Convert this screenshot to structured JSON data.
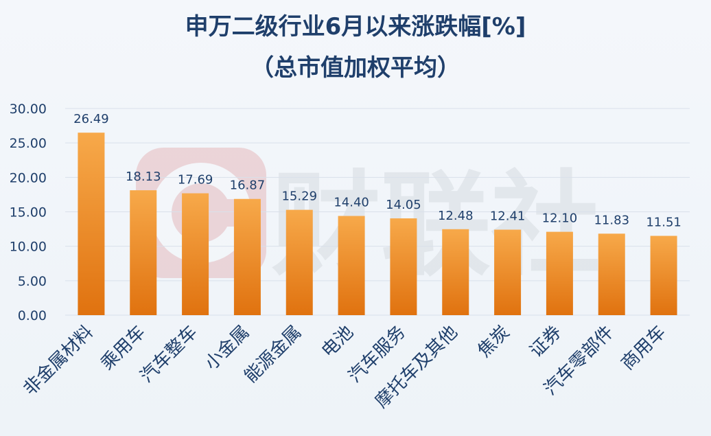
{
  "chart_data": {
    "type": "bar",
    "title": "申万二级行业6月以来涨跌幅[%]",
    "subtitle": "（总市值加权平均）",
    "watermark": "财联社",
    "categories": [
      "非金属材料",
      "乘用车",
      "汽车整车",
      "小金属",
      "能源金属",
      "电池",
      "汽车服务",
      "摩托车及其他",
      "焦炭",
      "证券",
      "汽车零部件",
      "商用车"
    ],
    "values": [
      26.49,
      18.13,
      17.69,
      16.87,
      15.29,
      14.4,
      14.05,
      12.48,
      12.41,
      12.1,
      11.83,
      11.51
    ],
    "value_labels": [
      "26.49",
      "18.13",
      "17.69",
      "16.87",
      "15.29",
      "14.40",
      "14.05",
      "12.48",
      "12.41",
      "12.10",
      "11.83",
      "11.51"
    ],
    "y_ticks": [
      0,
      5,
      10,
      15,
      20,
      25,
      30
    ],
    "y_tick_labels": [
      "0.00",
      "5.00",
      "10.00",
      "15.00",
      "20.00",
      "25.00",
      "30.00"
    ],
    "ylim": [
      0,
      30
    ],
    "xlabel": "",
    "ylabel": "",
    "grid": true,
    "legend": "none",
    "colors": {
      "bar_top": "#f7a94a",
      "bar_bottom": "#e0720f",
      "title": "#1f3f6b",
      "axis_text": "#1f3f6b",
      "grid": "#d9e0ea"
    }
  }
}
